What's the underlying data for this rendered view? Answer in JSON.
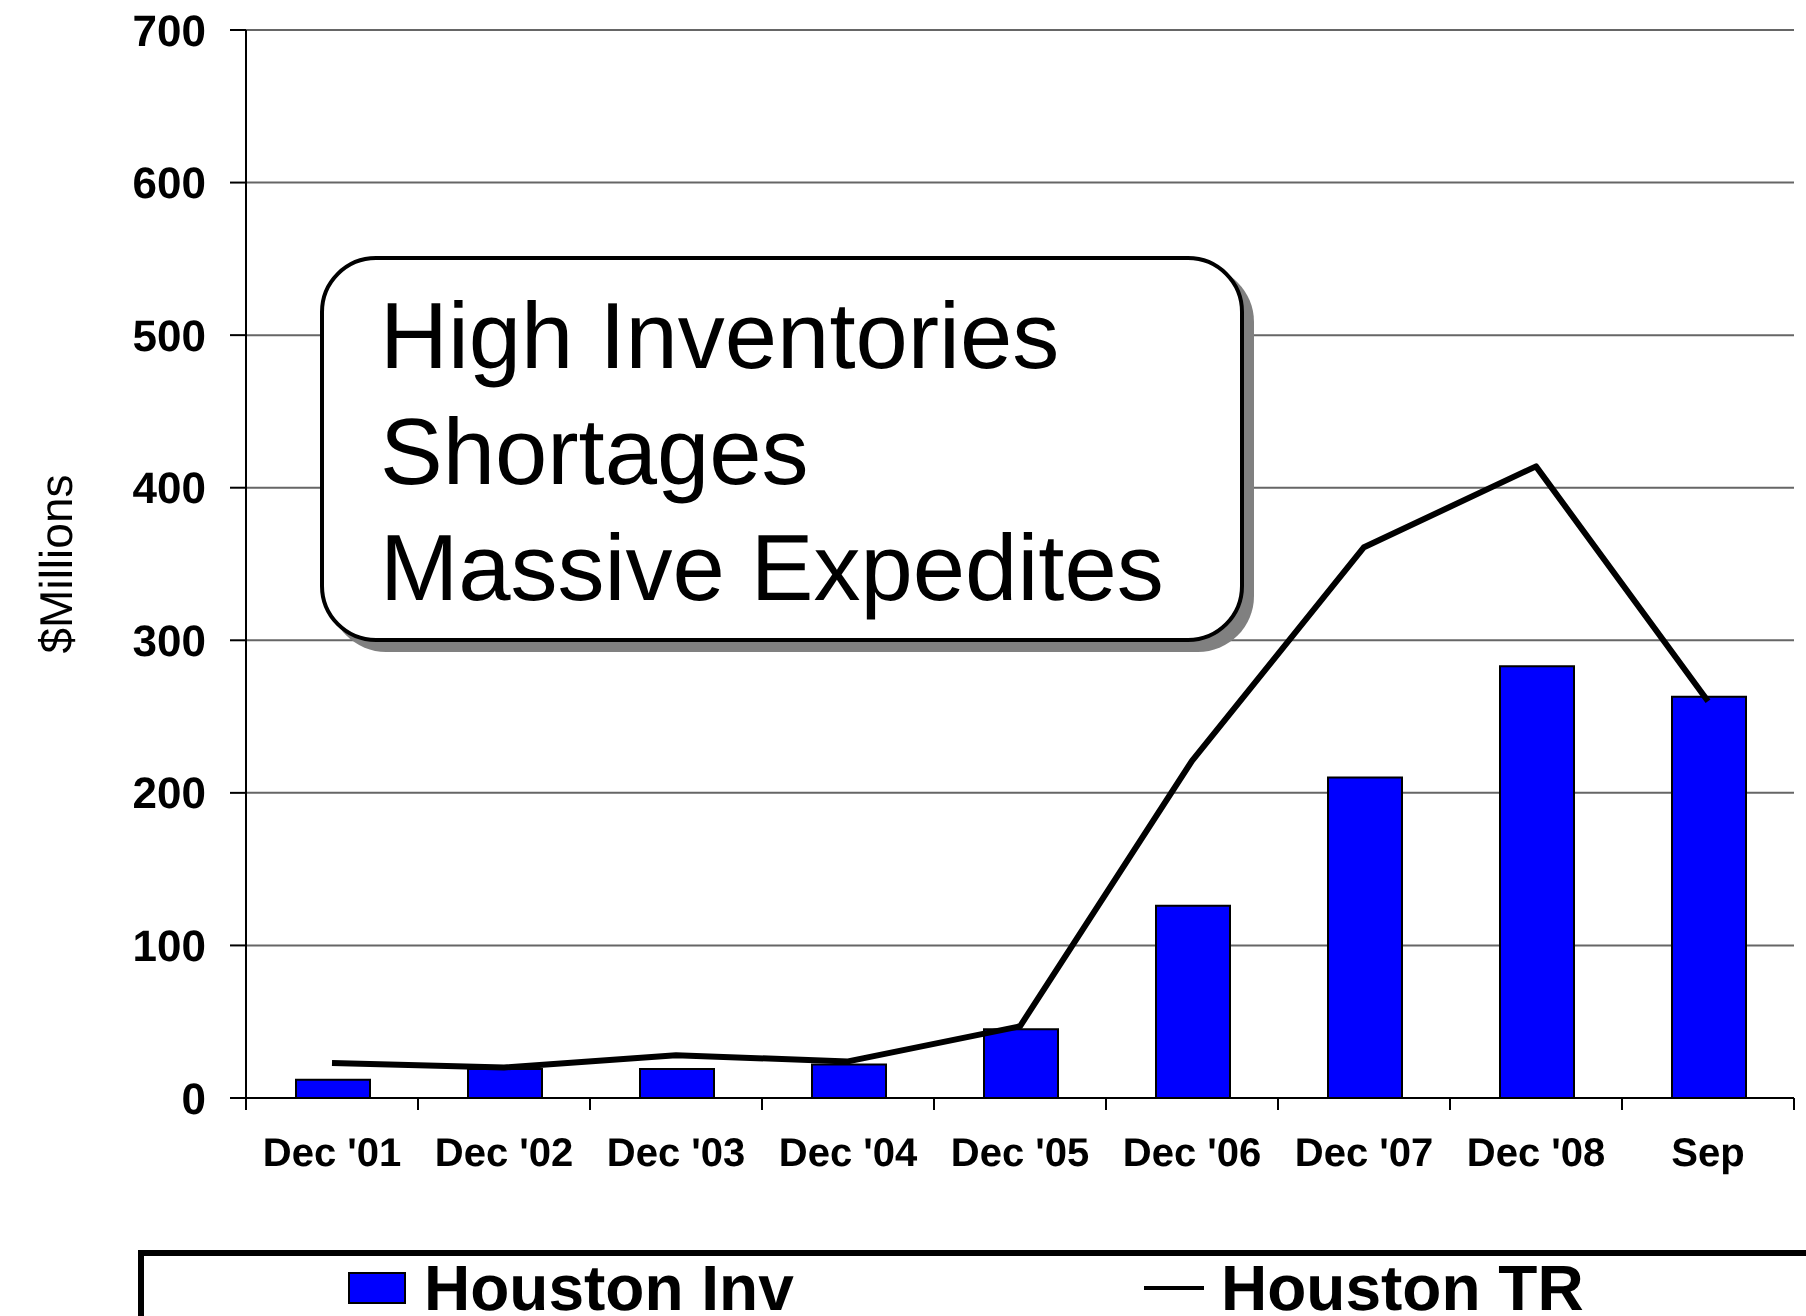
{
  "chart_data": {
    "type": "bar",
    "ylabel": "$Millions",
    "categories": [
      "Dec '01",
      "Dec '02",
      "Dec '03",
      "Dec '04",
      "Dec '05",
      "Dec '06",
      "Dec '07",
      "Dec '08",
      "Sep"
    ],
    "series": [
      {
        "name": "Houston Inv",
        "color": "#0000ff",
        "values": [
          12,
          19,
          19,
          22,
          45,
          126,
          210,
          283,
          263
        ]
      },
      {
        "name": "Houston TR",
        "type": "line",
        "color": "#000000",
        "values": [
          23,
          20,
          28,
          24,
          47,
          221,
          361,
          414,
          260
        ]
      }
    ],
    "ylim": [
      0,
      700
    ],
    "yticks": [
      0,
      100,
      200,
      300,
      400,
      500,
      600,
      700
    ],
    "grid": "y",
    "legend": "bottom",
    "marker": "none",
    "annotations": [
      "High Inventories\nShortages\nMassive Expedites"
    ]
  }
}
